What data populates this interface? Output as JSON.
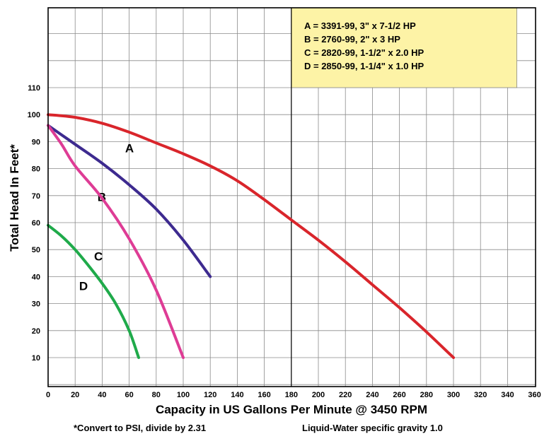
{
  "chart_data": {
    "type": "line",
    "title": "",
    "xlabel": "Capacity in US Gallons Per Minute @ 3450 RPM",
    "ylabel": "Total Head In Feet*",
    "xlim": [
      0,
      360
    ],
    "ylim": [
      0,
      110
    ],
    "x_ticks": [
      "0",
      "20",
      "40",
      "60",
      "80",
      "100",
      "120",
      "140",
      "160",
      "180",
      "200",
      "220",
      "240",
      "260",
      "280",
      "300",
      "320",
      "340",
      "360"
    ],
    "y_ticks": [
      "10",
      "20",
      "30",
      "40",
      "50",
      "60",
      "70",
      "80",
      "90",
      "100",
      "110"
    ],
    "grid": true,
    "reference_line_x": 180,
    "legend_position": "top-right",
    "legend_background": "#fdf3a6",
    "legend": [
      "A = 3391-99, 3\" x 7-1/2 HP",
      "B = 2760-99, 2\" x 3 HP",
      "C = 2820-99, 1-1/2\" x 2.0 HP",
      "D = 2850-99, 1-1/4\" x 1.0 HP"
    ],
    "series": [
      {
        "name": "A",
        "color": "#d9252b",
        "label_at": [
          57,
          86
        ],
        "points": [
          [
            0,
            100
          ],
          [
            20,
            99
          ],
          [
            40,
            96.8
          ],
          [
            60,
            93.5
          ],
          [
            80,
            89.5
          ],
          [
            100,
            85.5
          ],
          [
            120,
            81
          ],
          [
            140,
            75.5
          ],
          [
            160,
            68.5
          ],
          [
            180,
            61
          ],
          [
            200,
            53.5
          ],
          [
            220,
            45.5
          ],
          [
            240,
            37
          ],
          [
            260,
            28.5
          ],
          [
            280,
            19.5
          ],
          [
            300,
            10
          ]
        ]
      },
      {
        "name": "B",
        "color": "#3d2a8f",
        "label_at": [
          36.5,
          68
        ],
        "points": [
          [
            0,
            96
          ],
          [
            10,
            92.5
          ],
          [
            20,
            89
          ],
          [
            40,
            82
          ],
          [
            60,
            74
          ],
          [
            80,
            65
          ],
          [
            100,
            53.5
          ],
          [
            120,
            40
          ]
        ]
      },
      {
        "name": "C",
        "color": "#de3c95",
        "label_at": [
          34,
          46
        ],
        "points": [
          [
            0,
            96
          ],
          [
            10,
            89
          ],
          [
            20,
            81
          ],
          [
            40,
            69
          ],
          [
            60,
            54
          ],
          [
            80,
            35
          ],
          [
            100,
            10
          ]
        ]
      },
      {
        "name": "D",
        "color": "#1faa4a",
        "label_at": [
          23,
          35
        ],
        "points": [
          [
            0,
            59
          ],
          [
            10,
            55
          ],
          [
            20,
            50
          ],
          [
            30,
            44
          ],
          [
            40,
            37.5
          ],
          [
            50,
            30
          ],
          [
            60,
            20
          ],
          [
            67,
            10
          ]
        ]
      }
    ]
  },
  "footnote": {
    "psi": "*Convert to PSI, divide by 2.31",
    "gravity": "Liquid-Water specific gravity 1.0"
  }
}
